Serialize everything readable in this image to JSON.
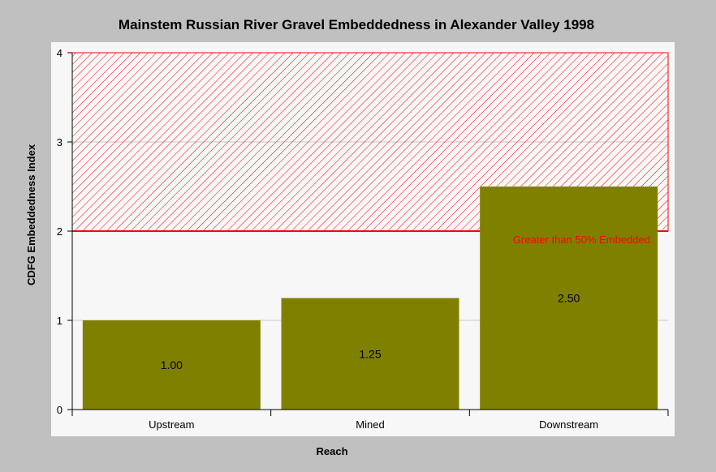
{
  "chart_data": {
    "type": "bar",
    "title": "Mainstem Russian River Gravel Embeddedness in Alexander Valley 1998",
    "xlabel": "Reach",
    "ylabel": "CDFG Embeddedness Index",
    "categories": [
      "Upstream",
      "Mined",
      "Downstream"
    ],
    "values": [
      1.0,
      1.25,
      2.5
    ],
    "data_labels": [
      "1.00",
      "1.25",
      "2.50"
    ],
    "ylim": [
      0,
      4
    ],
    "yticks": [
      "0",
      "1",
      "2",
      "3",
      "4"
    ],
    "grid": true,
    "threshold": {
      "value": 2,
      "label": "Greater than 50% Embedded",
      "region": "hatched above threshold"
    },
    "colors": {
      "bar": "#808000",
      "threshold": "#ff0000",
      "plot_background": "#f7f7f7",
      "page_background": "#c0c0c0"
    }
  }
}
